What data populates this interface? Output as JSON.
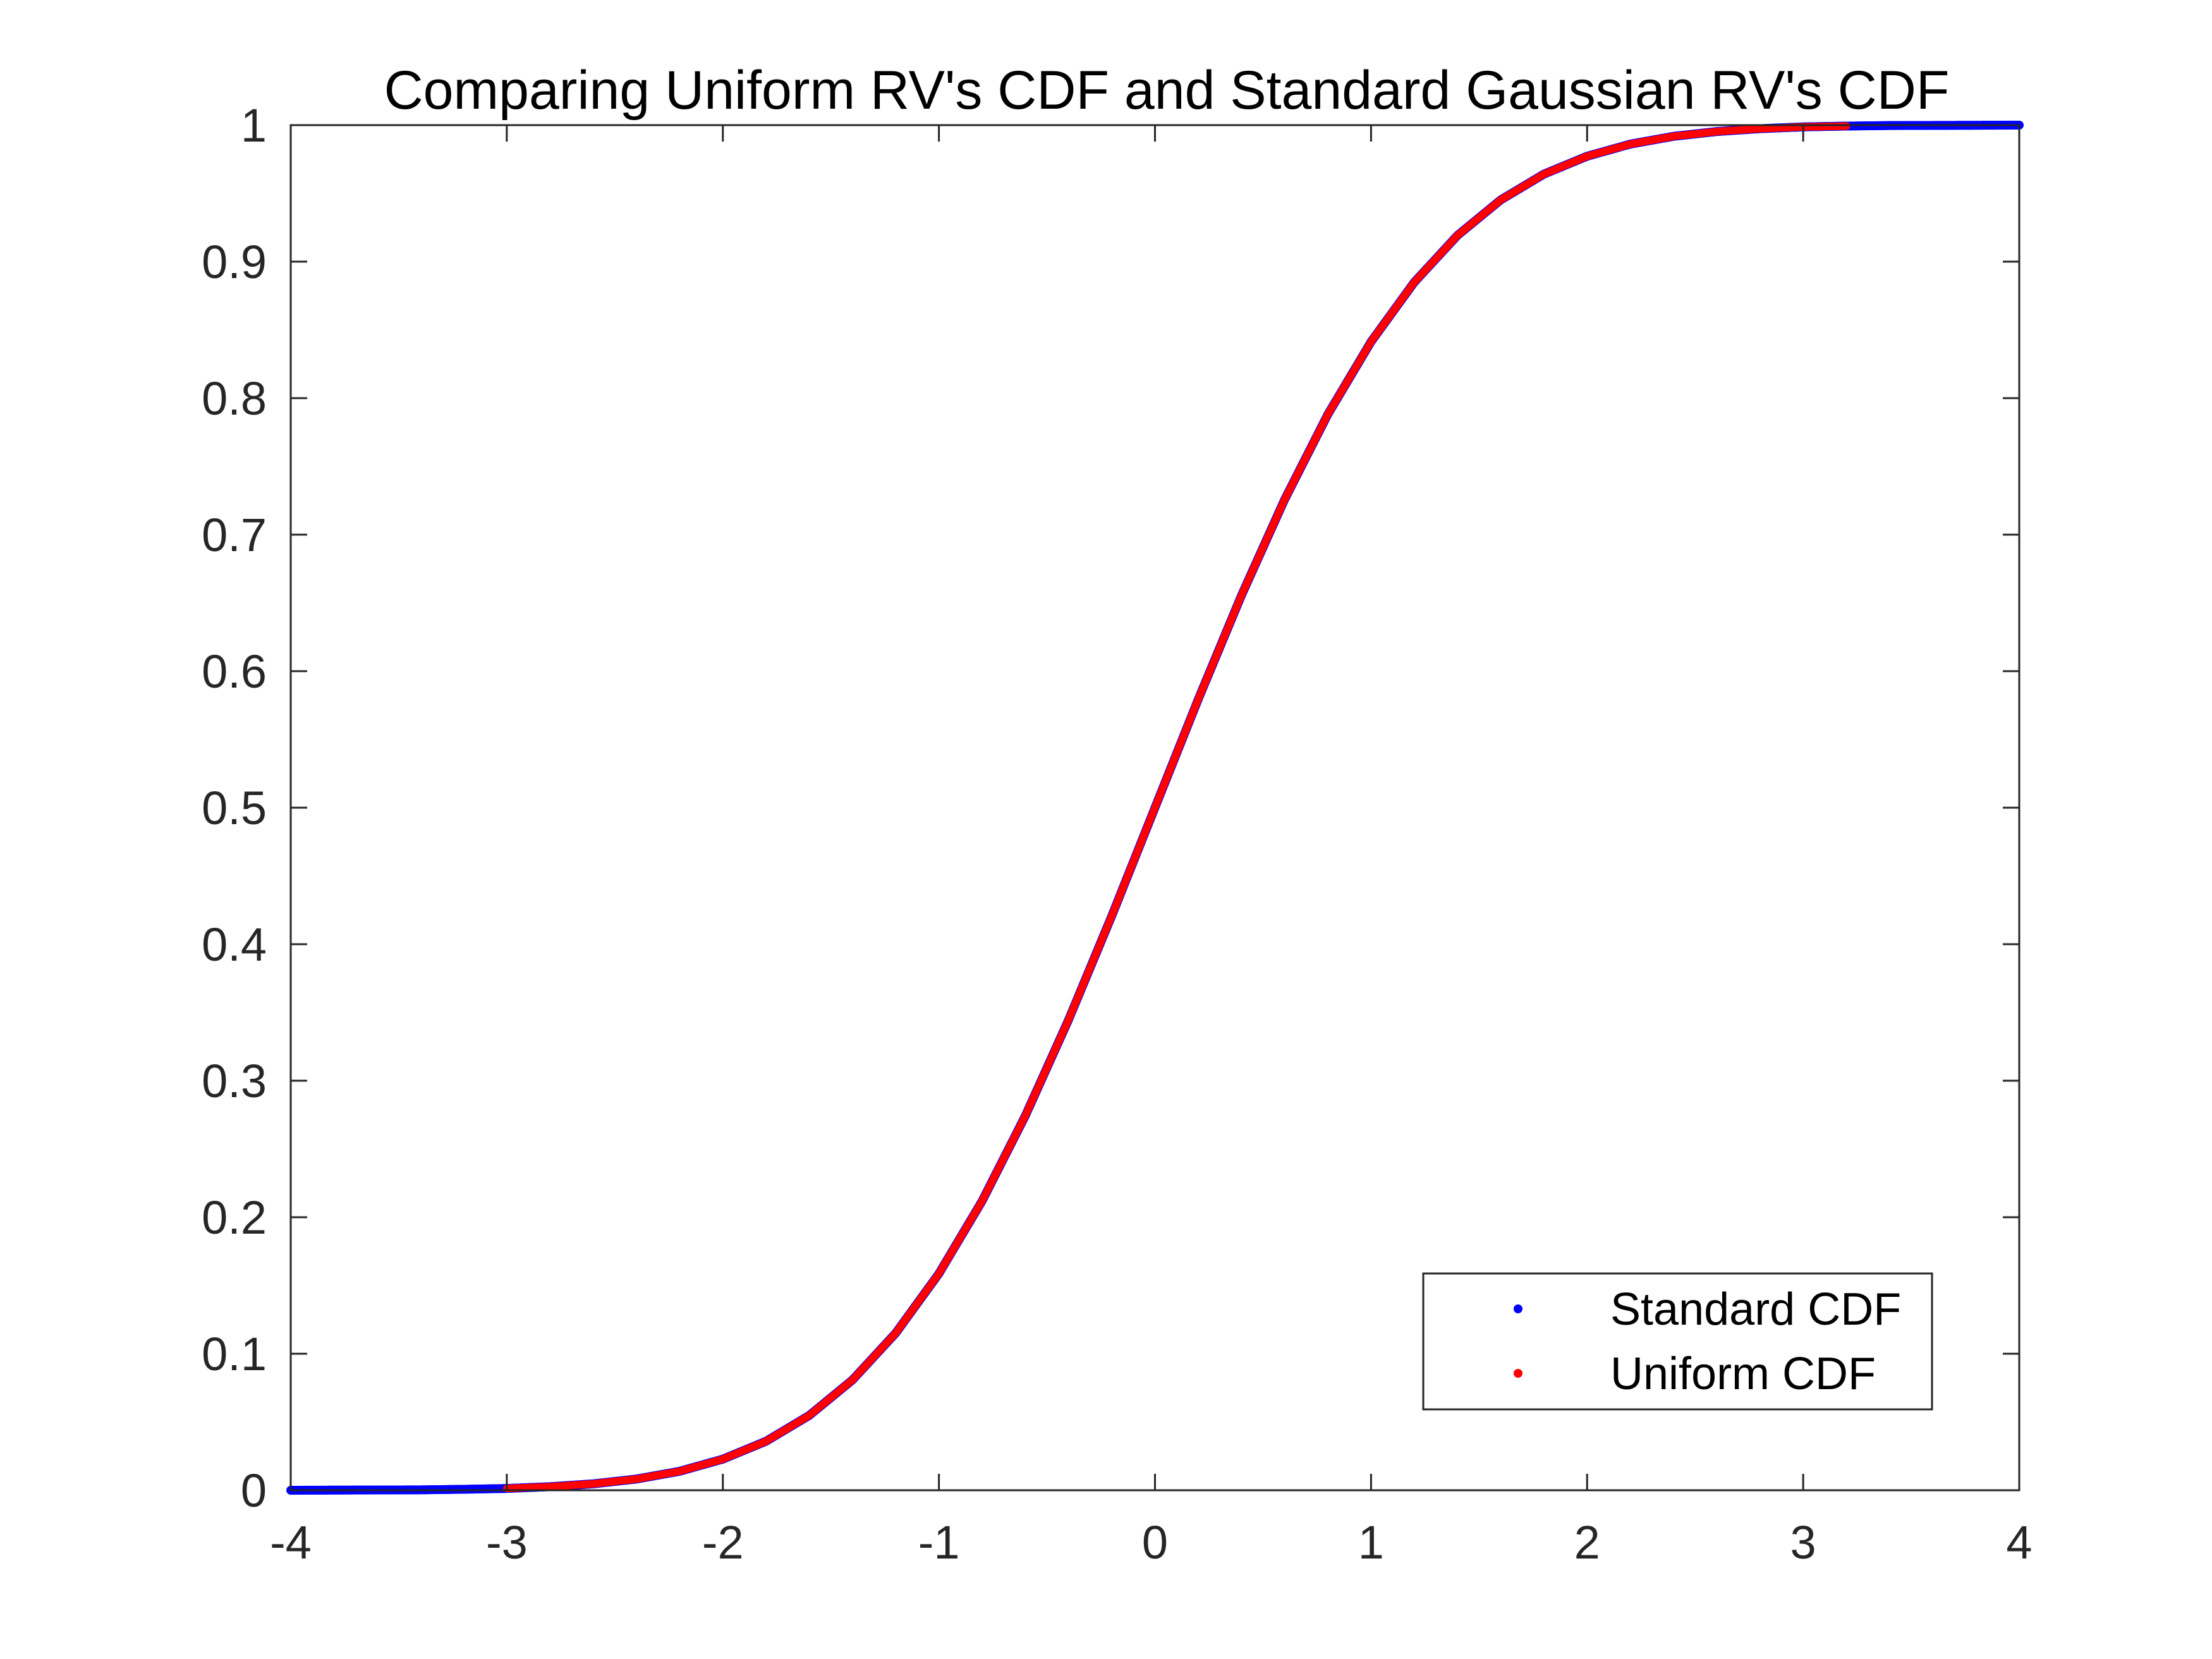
{
  "chart_data": {
    "type": "scatter",
    "title": "Comparing Uniform RV's CDF and Standard Gaussian RV's CDF",
    "xlabel": "",
    "ylabel": "",
    "xlim": [
      -4,
      4
    ],
    "ylim": [
      0,
      1
    ],
    "x_ticks": [
      -4,
      -3,
      -2,
      -1,
      0,
      1,
      2,
      3,
      4
    ],
    "y_ticks": [
      0,
      0.1,
      0.2,
      0.3,
      0.4,
      0.5,
      0.6,
      0.7,
      0.8,
      0.9,
      1
    ],
    "x_tick_labels": [
      "-4",
      "-3",
      "-2",
      "-1",
      "0",
      "1",
      "2",
      "3",
      "4"
    ],
    "y_tick_labels": [
      "0",
      "0.1",
      "0.2",
      "0.3",
      "0.4",
      "0.5",
      "0.6",
      "0.7",
      "0.8",
      "0.9",
      "1"
    ],
    "grid": false,
    "legend_position": "bottom-right",
    "series": [
      {
        "name": "Standard CDF",
        "color": "#0000ff",
        "x": [
          -4,
          -3.8,
          -3.6,
          -3.4,
          -3.2,
          -3,
          -2.8,
          -2.6,
          -2.4,
          -2.2,
          -2,
          -1.8,
          -1.6,
          -1.4,
          -1.2,
          -1,
          -0.8,
          -0.6,
          -0.4,
          -0.2,
          0,
          0.2,
          0.4,
          0.6,
          0.8,
          1,
          1.2,
          1.4,
          1.6,
          1.8,
          2,
          2.2,
          2.4,
          2.6,
          2.8,
          3,
          3.2,
          3.4,
          3.6,
          3.8,
          4
        ],
        "y": [
          0.0,
          0.0001,
          0.0002,
          0.0003,
          0.0007,
          0.0013,
          0.0026,
          0.0047,
          0.0082,
          0.0139,
          0.0228,
          0.0359,
          0.0548,
          0.0808,
          0.1151,
          0.1587,
          0.2119,
          0.2743,
          0.3446,
          0.4207,
          0.5,
          0.5793,
          0.6554,
          0.7257,
          0.7881,
          0.8413,
          0.8849,
          0.9192,
          0.9452,
          0.9641,
          0.9772,
          0.9861,
          0.9918,
          0.9953,
          0.9974,
          0.9987,
          0.9993,
          0.9997,
          0.9998,
          0.9999,
          1.0
        ]
      },
      {
        "name": "Uniform CDF",
        "color": "#ff0000",
        "x": [
          -3.0,
          -2.8,
          -2.6,
          -2.4,
          -2.2,
          -2,
          -1.8,
          -1.6,
          -1.4,
          -1.2,
          -1,
          -0.8,
          -0.6,
          -0.4,
          -0.2,
          0,
          0.2,
          0.4,
          0.6,
          0.8,
          1,
          1.2,
          1.4,
          1.6,
          1.8,
          2,
          2.2,
          2.4,
          2.6,
          2.8,
          3.0,
          3.2
        ],
        "y": [
          0.0013,
          0.0026,
          0.0047,
          0.0082,
          0.0139,
          0.0228,
          0.0359,
          0.0548,
          0.0808,
          0.1151,
          0.1587,
          0.2119,
          0.2743,
          0.3446,
          0.4207,
          0.5,
          0.5793,
          0.6554,
          0.7257,
          0.7881,
          0.8413,
          0.8849,
          0.9192,
          0.9452,
          0.9641,
          0.9772,
          0.9861,
          0.9918,
          0.9953,
          0.9974,
          0.9987,
          0.9993
        ]
      }
    ]
  }
}
